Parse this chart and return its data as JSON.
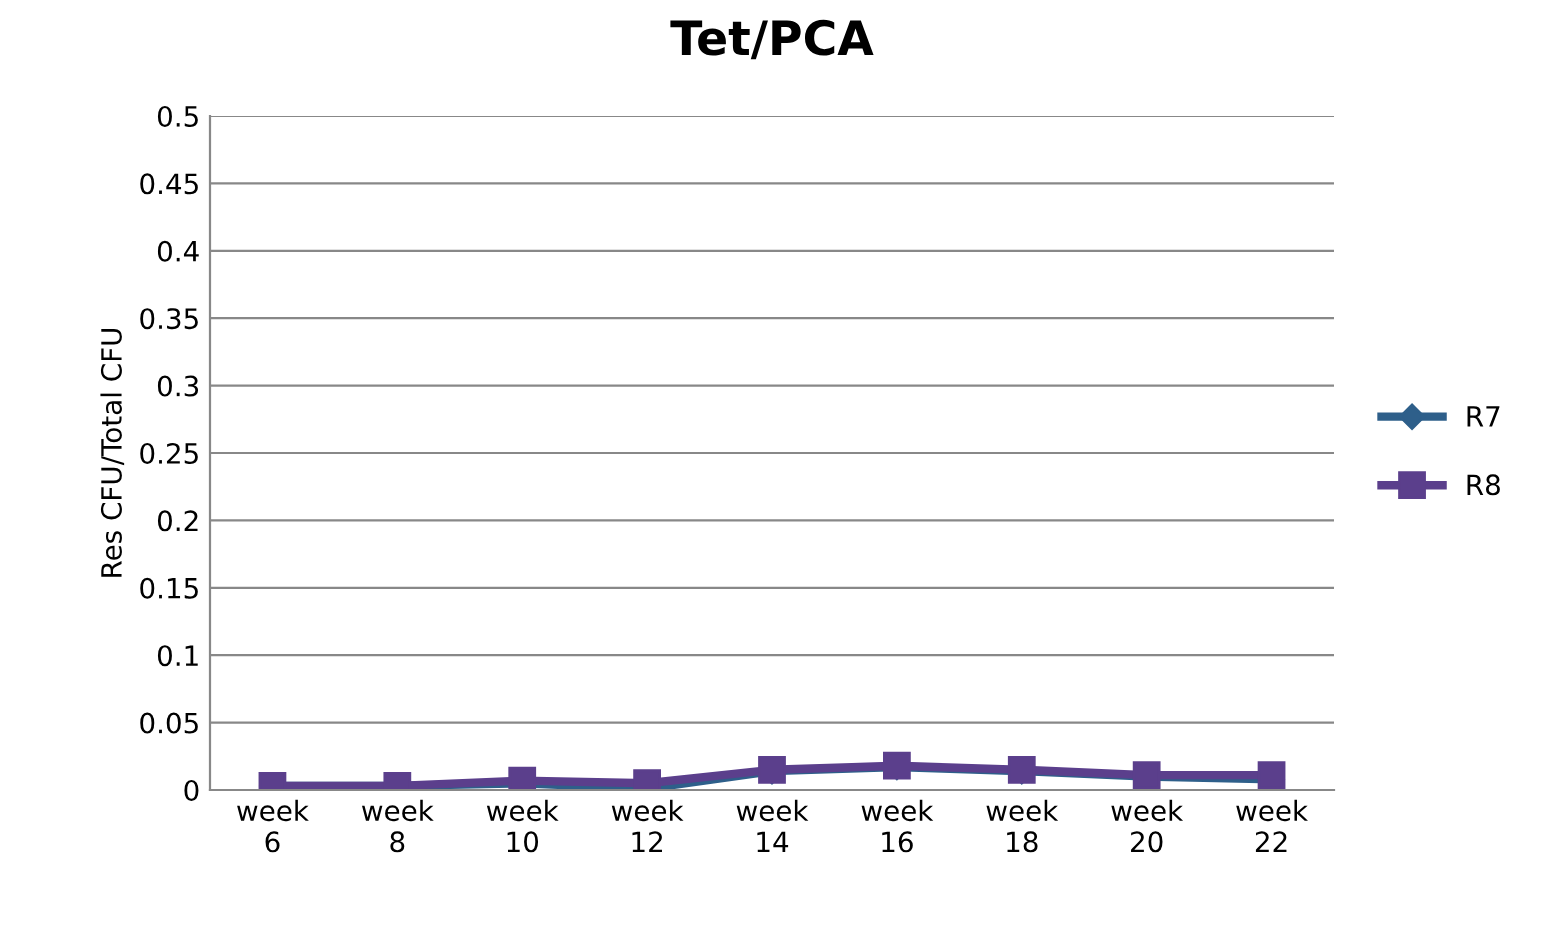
{
  "chart_data": {
    "type": "line",
    "title": "Tet/PCA",
    "ylabel": "Res CFU/Total CFU",
    "categories": [
      "week\n6",
      "week\n8",
      "week\n10",
      "week\n12",
      "week\n14",
      "week\n16",
      "week\n18",
      "week\n20",
      "week\n22"
    ],
    "series": [
      {
        "name": "R7",
        "color": "#2e5f8a",
        "marker": "diamond",
        "values": [
          0.003,
          0.003,
          0.005,
          0.001,
          0.014,
          0.017,
          0.014,
          0.01,
          0.008
        ]
      },
      {
        "name": "R8",
        "color": "#5b3f8c",
        "marker": "square",
        "values": [
          0.003,
          0.003,
          0.007,
          0.005,
          0.015,
          0.018,
          0.015,
          0.011,
          0.011
        ]
      }
    ],
    "ylim": [
      0,
      0.5
    ],
    "yticks": [
      0,
      0.05,
      0.1,
      0.15,
      0.2,
      0.25,
      0.3,
      0.35,
      0.4,
      0.45,
      0.5
    ],
    "grid": "y",
    "legend": "right"
  }
}
